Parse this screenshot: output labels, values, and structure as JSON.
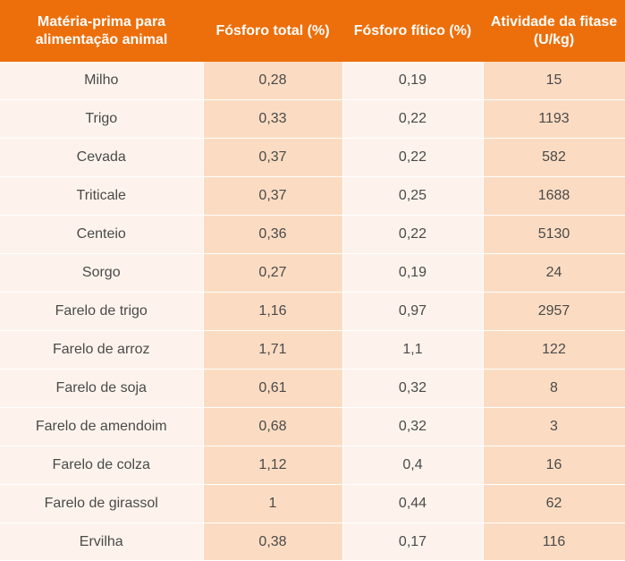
{
  "table": {
    "headers": [
      "Matéria-prima para alimentação animal",
      "Fósforo total (%)",
      "Fósforo fítico (%)",
      "Atividade da fitase (U/kg)"
    ],
    "rows": [
      [
        "Milho",
        "0,28",
        "0,19",
        "15"
      ],
      [
        "Trigo",
        "0,33",
        "0,22",
        "1193"
      ],
      [
        "Cevada",
        "0,37",
        "0,22",
        "582"
      ],
      [
        "Triticale",
        "0,37",
        "0,25",
        "1688"
      ],
      [
        "Centeio",
        "0,36",
        "0,22",
        "5130"
      ],
      [
        "Sorgo",
        "0,27",
        "0,19",
        "24"
      ],
      [
        "Farelo de trigo",
        "1,16",
        "0,97",
        "2957"
      ],
      [
        "Farelo de arroz",
        "1,71",
        "1,1",
        "122"
      ],
      [
        "Farelo de soja",
        "0,61",
        "0,32",
        "8"
      ],
      [
        "Farelo de amendoim",
        "0,68",
        "0,32",
        "3"
      ],
      [
        "Farelo de colza",
        "1,12",
        "0,4",
        "16"
      ],
      [
        "Farelo de girassol",
        "1",
        "0,44",
        "62"
      ],
      [
        "Ervilha",
        "0,38",
        "0,17",
        "116"
      ]
    ]
  },
  "colors": {
    "header_bg": "#ec6f0b",
    "header_text": "#ffffff",
    "light_cell": "#fdf3ec",
    "dark_cell": "#fbdcc2",
    "body_text": "#4a4a4a"
  }
}
